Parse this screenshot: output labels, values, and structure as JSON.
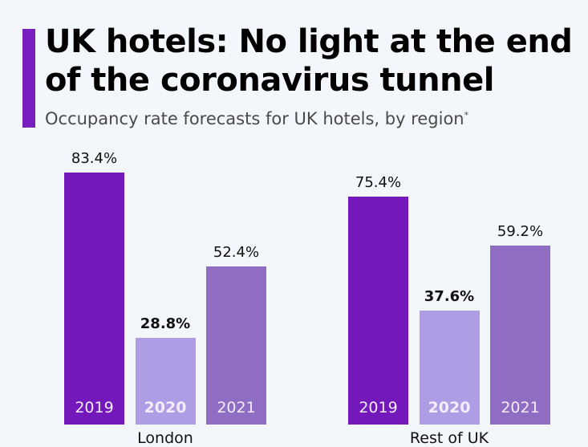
{
  "title_line1": "UK hotels: No light at the end",
  "title_line2": "of the coronavirus tunnel",
  "subtitle": "Occupancy rate forecasts for UK hotels, by region",
  "subtitle_mark": "*",
  "chart_data": {
    "type": "bar",
    "title": "UK hotels: No light at the end of the coronavirus tunnel",
    "subtitle": "Occupancy rate forecasts for UK hotels, by region*",
    "categories": [
      "London",
      "Rest of UK"
    ],
    "series": [
      {
        "name": "2019",
        "color": "#7318ba",
        "values": [
          83.4,
          75.4
        ],
        "labels": [
          "83.4%",
          "75.4%"
        ]
      },
      {
        "name": "2020",
        "color": "#ae9ce4",
        "values": [
          28.8,
          37.6
        ],
        "labels": [
          "28.8%",
          "37.6%"
        ]
      },
      {
        "name": "2021",
        "color": "#8e6dc2",
        "values": [
          52.4,
          59.2
        ],
        "labels": [
          "52.4%",
          "59.2%"
        ]
      }
    ],
    "ylim": [
      0,
      100
    ],
    "grid": false,
    "legend": "none (year labels inside bars)"
  }
}
